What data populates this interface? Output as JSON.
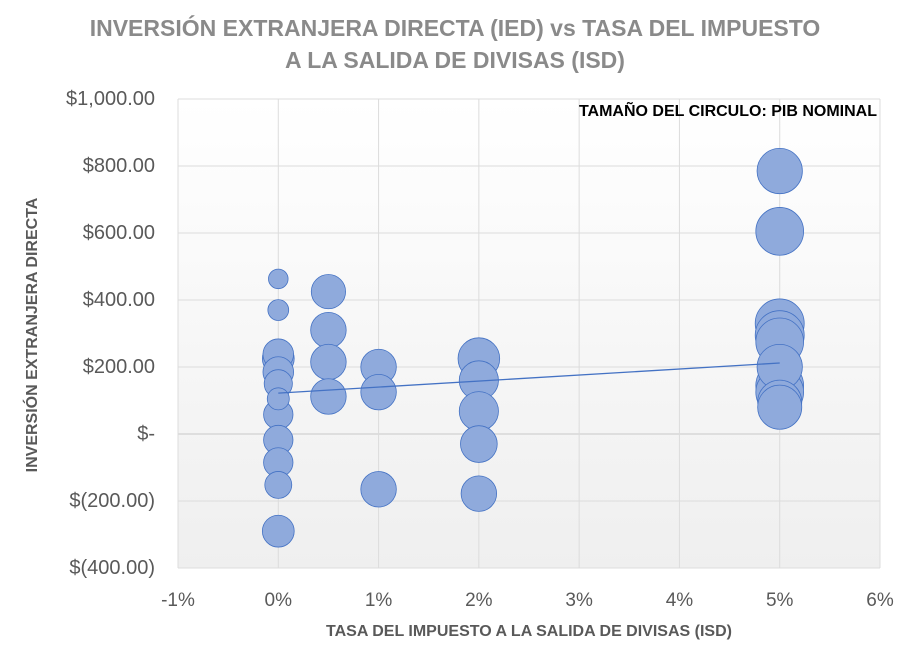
{
  "chart_data": {
    "type": "bubble",
    "title_line1": "INVERSIÓN EXTRANJERA DIRECTA (IED) vs TASA DEL IMPUESTO",
    "title_line2": "A LA SALIDA DE DIVISAS (ISD)",
    "xlabel": "TASA DEL IMPUESTO  A LA SALIDA DE DIVISAS (ISD)",
    "ylabel": "INVERSIÓN EXTRANJERA DIRECTA",
    "annotation": "TAMAÑO DEL CIRCULO: PIB NOMINAL",
    "xlim": [
      -1,
      6
    ],
    "ylim": [
      -400,
      1000
    ],
    "x_ticks": [
      {
        "value": -1,
        "label": "-1%"
      },
      {
        "value": 0,
        "label": "0%"
      },
      {
        "value": 1,
        "label": "1%"
      },
      {
        "value": 2,
        "label": "2%"
      },
      {
        "value": 3,
        "label": "3%"
      },
      {
        "value": 4,
        "label": "4%"
      },
      {
        "value": 5,
        "label": "5%"
      },
      {
        "value": 6,
        "label": "6%"
      }
    ],
    "y_ticks": [
      {
        "value": 1000,
        "label": "$1,000.00"
      },
      {
        "value": 800,
        "label": "$800.00"
      },
      {
        "value": 600,
        "label": "$600.00"
      },
      {
        "value": 400,
        "label": "$400.00"
      },
      {
        "value": 200,
        "label": "$200.00"
      },
      {
        "value": 0,
        "label": "$-"
      },
      {
        "value": -200,
        "label": "$(200.00)"
      },
      {
        "value": -400,
        "label": "$(400.00)"
      }
    ],
    "bubble_color": "#8faadc",
    "bubble_edge": "#4472c4",
    "trendline": {
      "x": [
        0,
        5
      ],
      "y": [
        122,
        212
      ],
      "color": "#4472c4"
    },
    "points": [
      {
        "x": 0,
        "y": 463,
        "size": 1.6
      },
      {
        "x": 0,
        "y": 370,
        "size": 1.7
      },
      {
        "x": 0,
        "y": 238,
        "size": 2.5
      },
      {
        "x": 0,
        "y": 225,
        "size": 2.6
      },
      {
        "x": 0,
        "y": 150,
        "size": 2.3
      },
      {
        "x": 0,
        "y": 105,
        "size": 1.8
      },
      {
        "x": 0,
        "y": 185,
        "size": 2.5
      },
      {
        "x": 0,
        "y": 58,
        "size": 2.4
      },
      {
        "x": 0,
        "y": -18,
        "size": 2.4
      },
      {
        "x": 0,
        "y": -85,
        "size": 2.4
      },
      {
        "x": 0,
        "y": -152,
        "size": 2.2
      },
      {
        "x": 0,
        "y": -290,
        "size": 2.6
      },
      {
        "x": 0.5,
        "y": 425,
        "size": 2.8
      },
      {
        "x": 0.5,
        "y": 310,
        "size": 2.9
      },
      {
        "x": 0.5,
        "y": 215,
        "size": 2.9
      },
      {
        "x": 0.5,
        "y": 112,
        "size": 2.9
      },
      {
        "x": 1,
        "y": 200,
        "size": 2.9
      },
      {
        "x": 1,
        "y": 125,
        "size": 2.9
      },
      {
        "x": 1,
        "y": -165,
        "size": 2.9
      },
      {
        "x": 2,
        "y": 225,
        "size": 3.4
      },
      {
        "x": 2,
        "y": 160,
        "size": 3.2
      },
      {
        "x": 2,
        "y": 68,
        "size": 3.2
      },
      {
        "x": 2,
        "y": -30,
        "size": 3.0
      },
      {
        "x": 2,
        "y": -178,
        "size": 2.9
      },
      {
        "x": 5,
        "y": 785,
        "size": 3.7
      },
      {
        "x": 5,
        "y": 605,
        "size": 3.9
      },
      {
        "x": 5,
        "y": 330,
        "size": 4.0
      },
      {
        "x": 5,
        "y": 295,
        "size": 4.0
      },
      {
        "x": 5,
        "y": 200,
        "size": 3.7
      },
      {
        "x": 5,
        "y": 95,
        "size": 3.6
      },
      {
        "x": 5,
        "y": 80,
        "size": 3.6
      },
      {
        "x": 5,
        "y": 275,
        "size": 3.9
      },
      {
        "x": 5,
        "y": 145,
        "size": 3.9
      },
      {
        "x": 5,
        "y": 125,
        "size": 3.9
      }
    ]
  }
}
